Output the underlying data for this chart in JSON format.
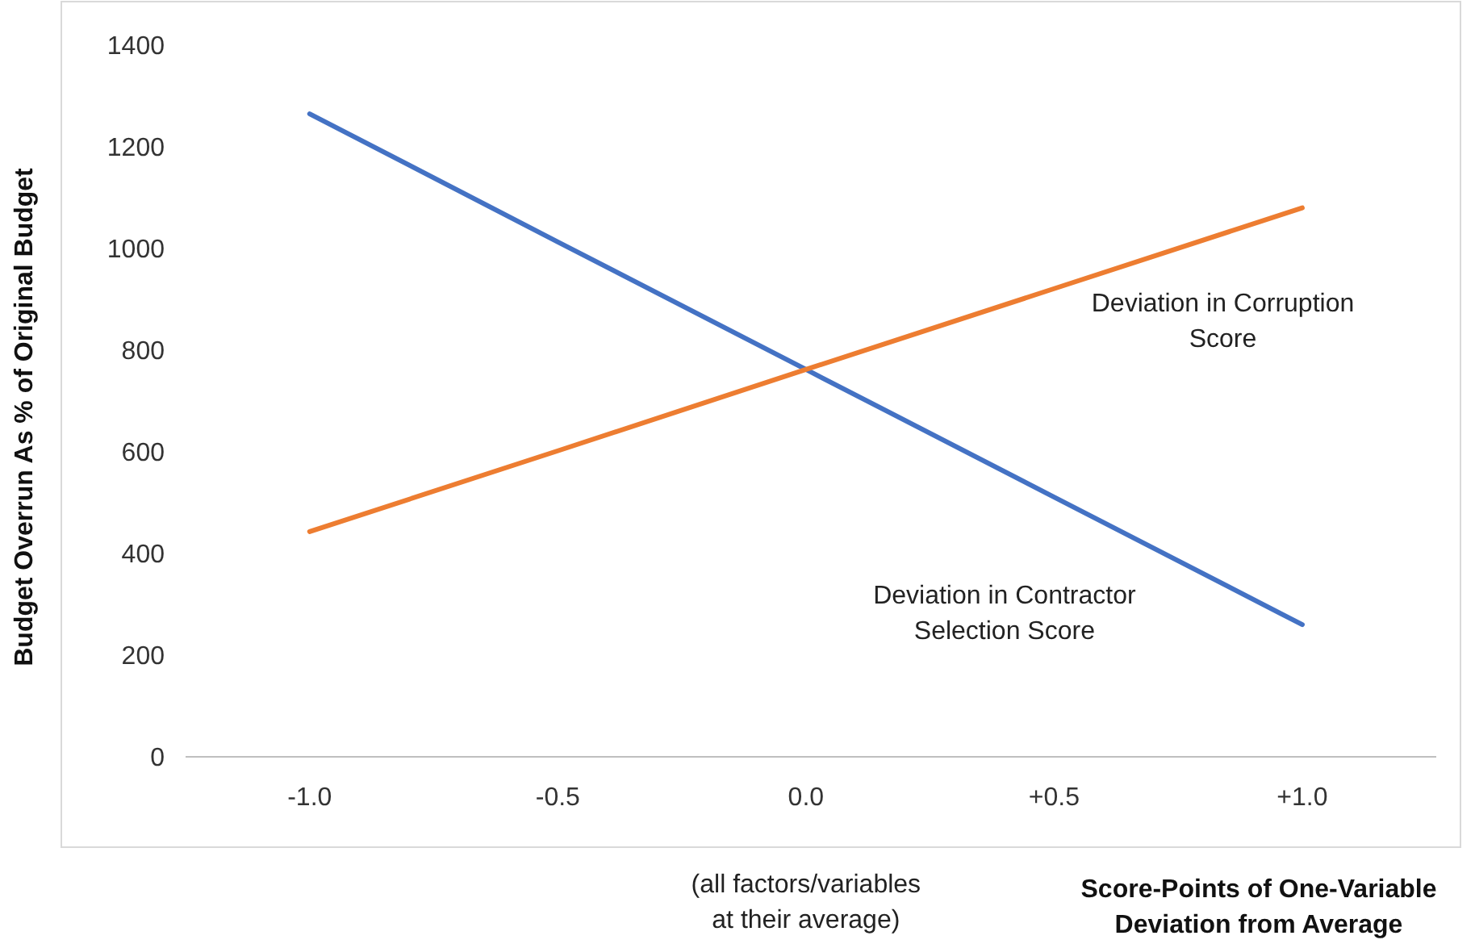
{
  "chart_data": {
    "type": "line",
    "xlabel": "Score-Points of One-Variable Deviation from Average",
    "ylabel": "Budget Overrun As % of Original Budget",
    "x": [
      -1,
      -0.5,
      0,
      0.5,
      1
    ],
    "xlim": [
      -1.25,
      1.27
    ],
    "xticks": [
      {
        "value": -1,
        "label": "-1.0"
      },
      {
        "value": -0.5,
        "label": "-0.5"
      },
      {
        "value": 0,
        "label": "0.0"
      },
      {
        "value": 0.5,
        "label": "+0.5"
      },
      {
        "value": 1,
        "label": "+1.0"
      }
    ],
    "ylim": [
      0,
      1400
    ],
    "yticks": [
      0,
      200,
      400,
      600,
      800,
      1000,
      1200,
      1400
    ],
    "grid": false,
    "legend": false,
    "marker": "none",
    "line_style": "solid",
    "series": [
      {
        "name": "Deviation in Contractor Selection Score",
        "color": "#4472c4",
        "values": [
          1265,
          1013,
          762,
          511,
          260
        ]
      },
      {
        "name": "Deviation in Corruption Score",
        "color": "#ed7d31",
        "values": [
          443,
          602,
          762,
          921,
          1080
        ]
      }
    ],
    "annotations": [
      "(all factors/variables at their average)"
    ]
  }
}
